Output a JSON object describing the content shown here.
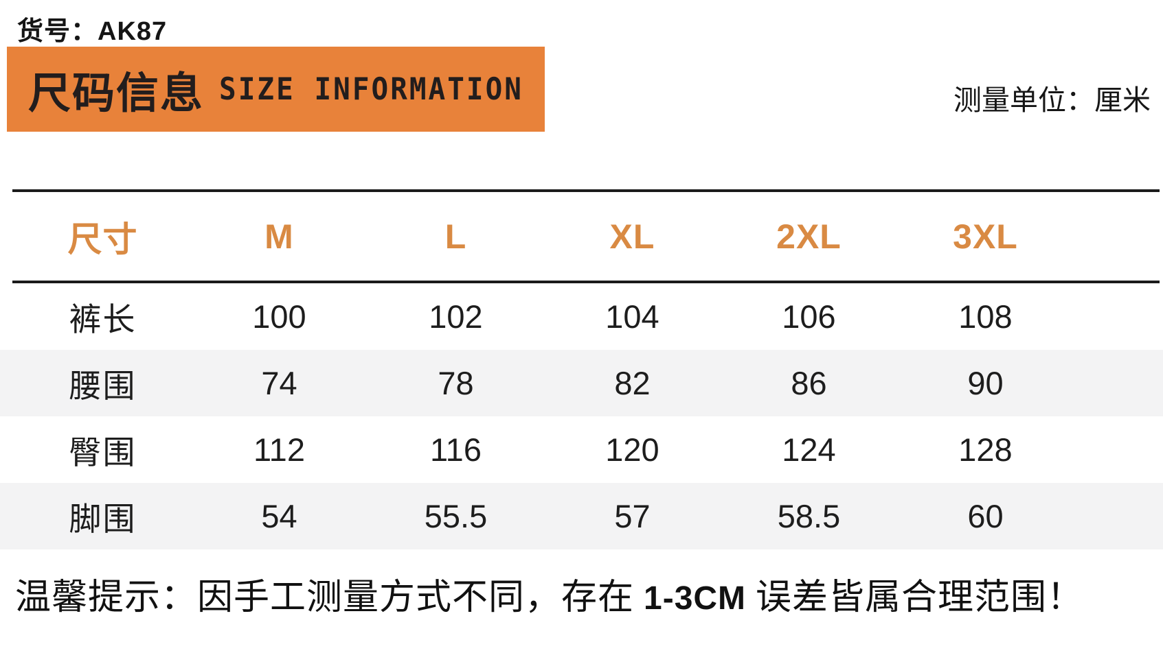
{
  "header": {
    "item_no_label": "货号：",
    "item_no_value": "AK87",
    "banner_title_cn": "尺码信息",
    "banner_title_en": "SIZE INFORMATION",
    "unit_text": "测量单位：厘米"
  },
  "table": {
    "columns": [
      "尺寸",
      "M",
      "L",
      "XL",
      "2XL",
      "3XL"
    ],
    "rows": [
      {
        "label": "裤长",
        "values": [
          "100",
          "102",
          "104",
          "106",
          "108"
        ]
      },
      {
        "label": "腰围",
        "values": [
          "74",
          "78",
          "82",
          "86",
          "90"
        ]
      },
      {
        "label": "臀围",
        "values": [
          "112",
          "116",
          "120",
          "124",
          "128"
        ]
      },
      {
        "label": "脚围",
        "values": [
          "54",
          "55.5",
          "57",
          "58.5",
          "60"
        ]
      }
    ]
  },
  "note": {
    "prefix": "温馨提示：因手工测量方式不同，存在 ",
    "highlight": "1-3CM",
    "suffix": " 误差皆属合理范围！"
  },
  "colors": {
    "banner_bg": "#e8823a",
    "header_text": "#d98a43",
    "stripe_bg": "#f3f3f4",
    "rule": "#1b1b1b"
  },
  "chart_data": {
    "type": "table",
    "title": "尺码信息 SIZE INFORMATION",
    "item_no": "AK87",
    "unit": "厘米",
    "columns": [
      "尺寸",
      "M",
      "L",
      "XL",
      "2XL",
      "3XL"
    ],
    "rows": [
      [
        "裤长",
        100,
        102,
        104,
        106,
        108
      ],
      [
        "腰围",
        74,
        78,
        82,
        86,
        90
      ],
      [
        "臀围",
        112,
        116,
        120,
        124,
        128
      ],
      [
        "脚围",
        54,
        55.5,
        57,
        58.5,
        60
      ]
    ],
    "note": "温馨提示：因手工测量方式不同，存在 1-3CM 误差皆属合理范围！"
  }
}
